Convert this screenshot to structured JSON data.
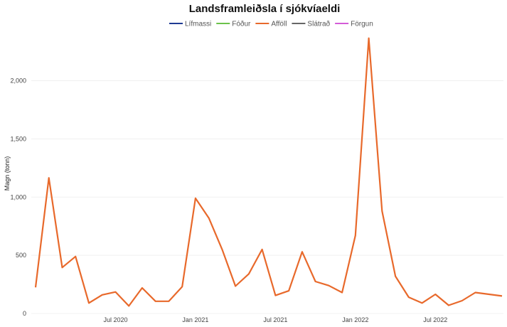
{
  "chart_data": {
    "type": "line",
    "title": "Landsframleiðsla í sjókvíaeldi",
    "ylabel": "Magn (tonn)",
    "xlabel": "",
    "ylim": [
      0,
      2400
    ],
    "yticks": [
      {
        "value": 0,
        "label": "0"
      },
      {
        "value": 500,
        "label": "500"
      },
      {
        "value": 1000,
        "label": "1,000"
      },
      {
        "value": 1500,
        "label": "1,500"
      },
      {
        "value": 2000,
        "label": "2,000"
      }
    ],
    "xlim": [
      "2020-01",
      "2022-12"
    ],
    "xticks": [
      {
        "date": "2020-07",
        "label": "Jul 2020"
      },
      {
        "date": "2021-01",
        "label": "Jan 2021"
      },
      {
        "date": "2021-07",
        "label": "Jul 2021"
      },
      {
        "date": "2022-01",
        "label": "Jan 2022"
      },
      {
        "date": "2022-07",
        "label": "Jul 2022"
      }
    ],
    "grid": true,
    "legend_position": "top",
    "series": [
      {
        "name": "Lífmassi",
        "color": "#1f3a93",
        "x": [],
        "values": []
      },
      {
        "name": "Fóður",
        "color": "#6cc24a",
        "x": [],
        "values": []
      },
      {
        "name": "Afföll",
        "color": "#e8692b",
        "x": [
          "2020-01",
          "2020-02",
          "2020-03",
          "2020-04",
          "2020-05",
          "2020-06",
          "2020-07",
          "2020-08",
          "2020-09",
          "2020-10",
          "2020-11",
          "2020-12",
          "2021-01",
          "2021-02",
          "2021-03",
          "2021-04",
          "2021-05",
          "2021-06",
          "2021-07",
          "2021-08",
          "2021-09",
          "2021-10",
          "2021-11",
          "2021-12",
          "2022-01",
          "2022-02",
          "2022-03",
          "2022-04",
          "2022-05",
          "2022-06",
          "2022-07",
          "2022-08",
          "2022-09",
          "2022-10",
          "2022-12"
        ],
        "values": [
          225,
          1165,
          395,
          490,
          90,
          160,
          185,
          65,
          220,
          105,
          105,
          230,
          990,
          820,
          550,
          235,
          340,
          550,
          155,
          195,
          530,
          275,
          240,
          180,
          670,
          2365,
          880,
          320,
          140,
          90,
          165,
          70,
          110,
          180,
          150
        ]
      },
      {
        "name": "Slátrað",
        "color": "#666666",
        "x": [],
        "values": []
      },
      {
        "name": "Förgun",
        "color": "#d45bd8",
        "x": [],
        "values": []
      }
    ]
  }
}
